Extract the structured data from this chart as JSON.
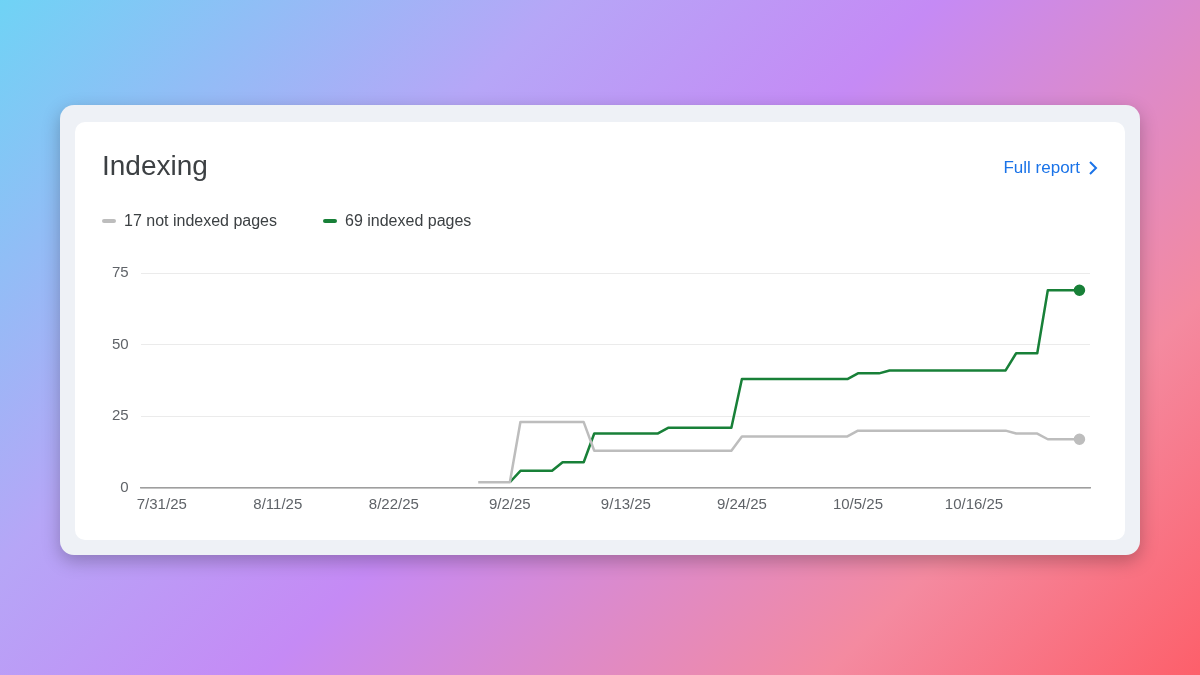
{
  "chart_data": {
    "type": "line",
    "title": "Indexing",
    "annotations": [
      "Full report"
    ],
    "legend": "top left",
    "grid": "y",
    "xlim": [
      "--07-29",
      "--10-27"
    ],
    "xticks": [
      {
        "value": "--07-31",
        "label": "7/31/25"
      },
      {
        "value": "--08-11",
        "label": "8/11/25"
      },
      {
        "value": "--08-22",
        "label": "8/22/25"
      },
      {
        "value": "--09-02",
        "label": "9/2/25"
      },
      {
        "value": "--09-13",
        "label": "9/13/25"
      },
      {
        "value": "--09-24",
        "label": "9/24/25"
      },
      {
        "value": "--10-05",
        "label": "10/5/25"
      },
      {
        "value": "--10-16",
        "label": "10/16/25"
      }
    ],
    "ylim": [
      0,
      75
    ],
    "yticks": [
      0,
      25,
      50,
      75
    ],
    "series": [
      {
        "name": "17 not indexed pages",
        "color": "#bdbdbd",
        "x": [
          "--08-30",
          "--09-02",
          "--09-03",
          "--09-09",
          "--09-10",
          "--09-23",
          "--09-24",
          "--10-04",
          "--10-05",
          "--10-19",
          "--10-20",
          "--10-22",
          "--10-23",
          "--10-26"
        ],
        "values": [
          2,
          2,
          23,
          23,
          13,
          13,
          18,
          18,
          20,
          20,
          19,
          19,
          17,
          17
        ]
      },
      {
        "name": "69 indexed pages",
        "color": "#188038",
        "x": [
          "--09-02",
          "--09-03",
          "--09-06",
          "--09-07",
          "--09-09",
          "--09-10",
          "--09-16",
          "--09-17",
          "--09-23",
          "--09-24",
          "--10-04",
          "--10-05",
          "--10-07",
          "--10-08",
          "--10-19",
          "--10-20",
          "--10-22",
          "--10-23",
          "--10-26"
        ],
        "values": [
          2,
          6,
          6,
          9,
          9,
          19,
          19,
          21,
          21,
          38,
          38,
          40,
          40,
          41,
          41,
          47,
          47,
          69,
          69
        ]
      }
    ]
  }
}
